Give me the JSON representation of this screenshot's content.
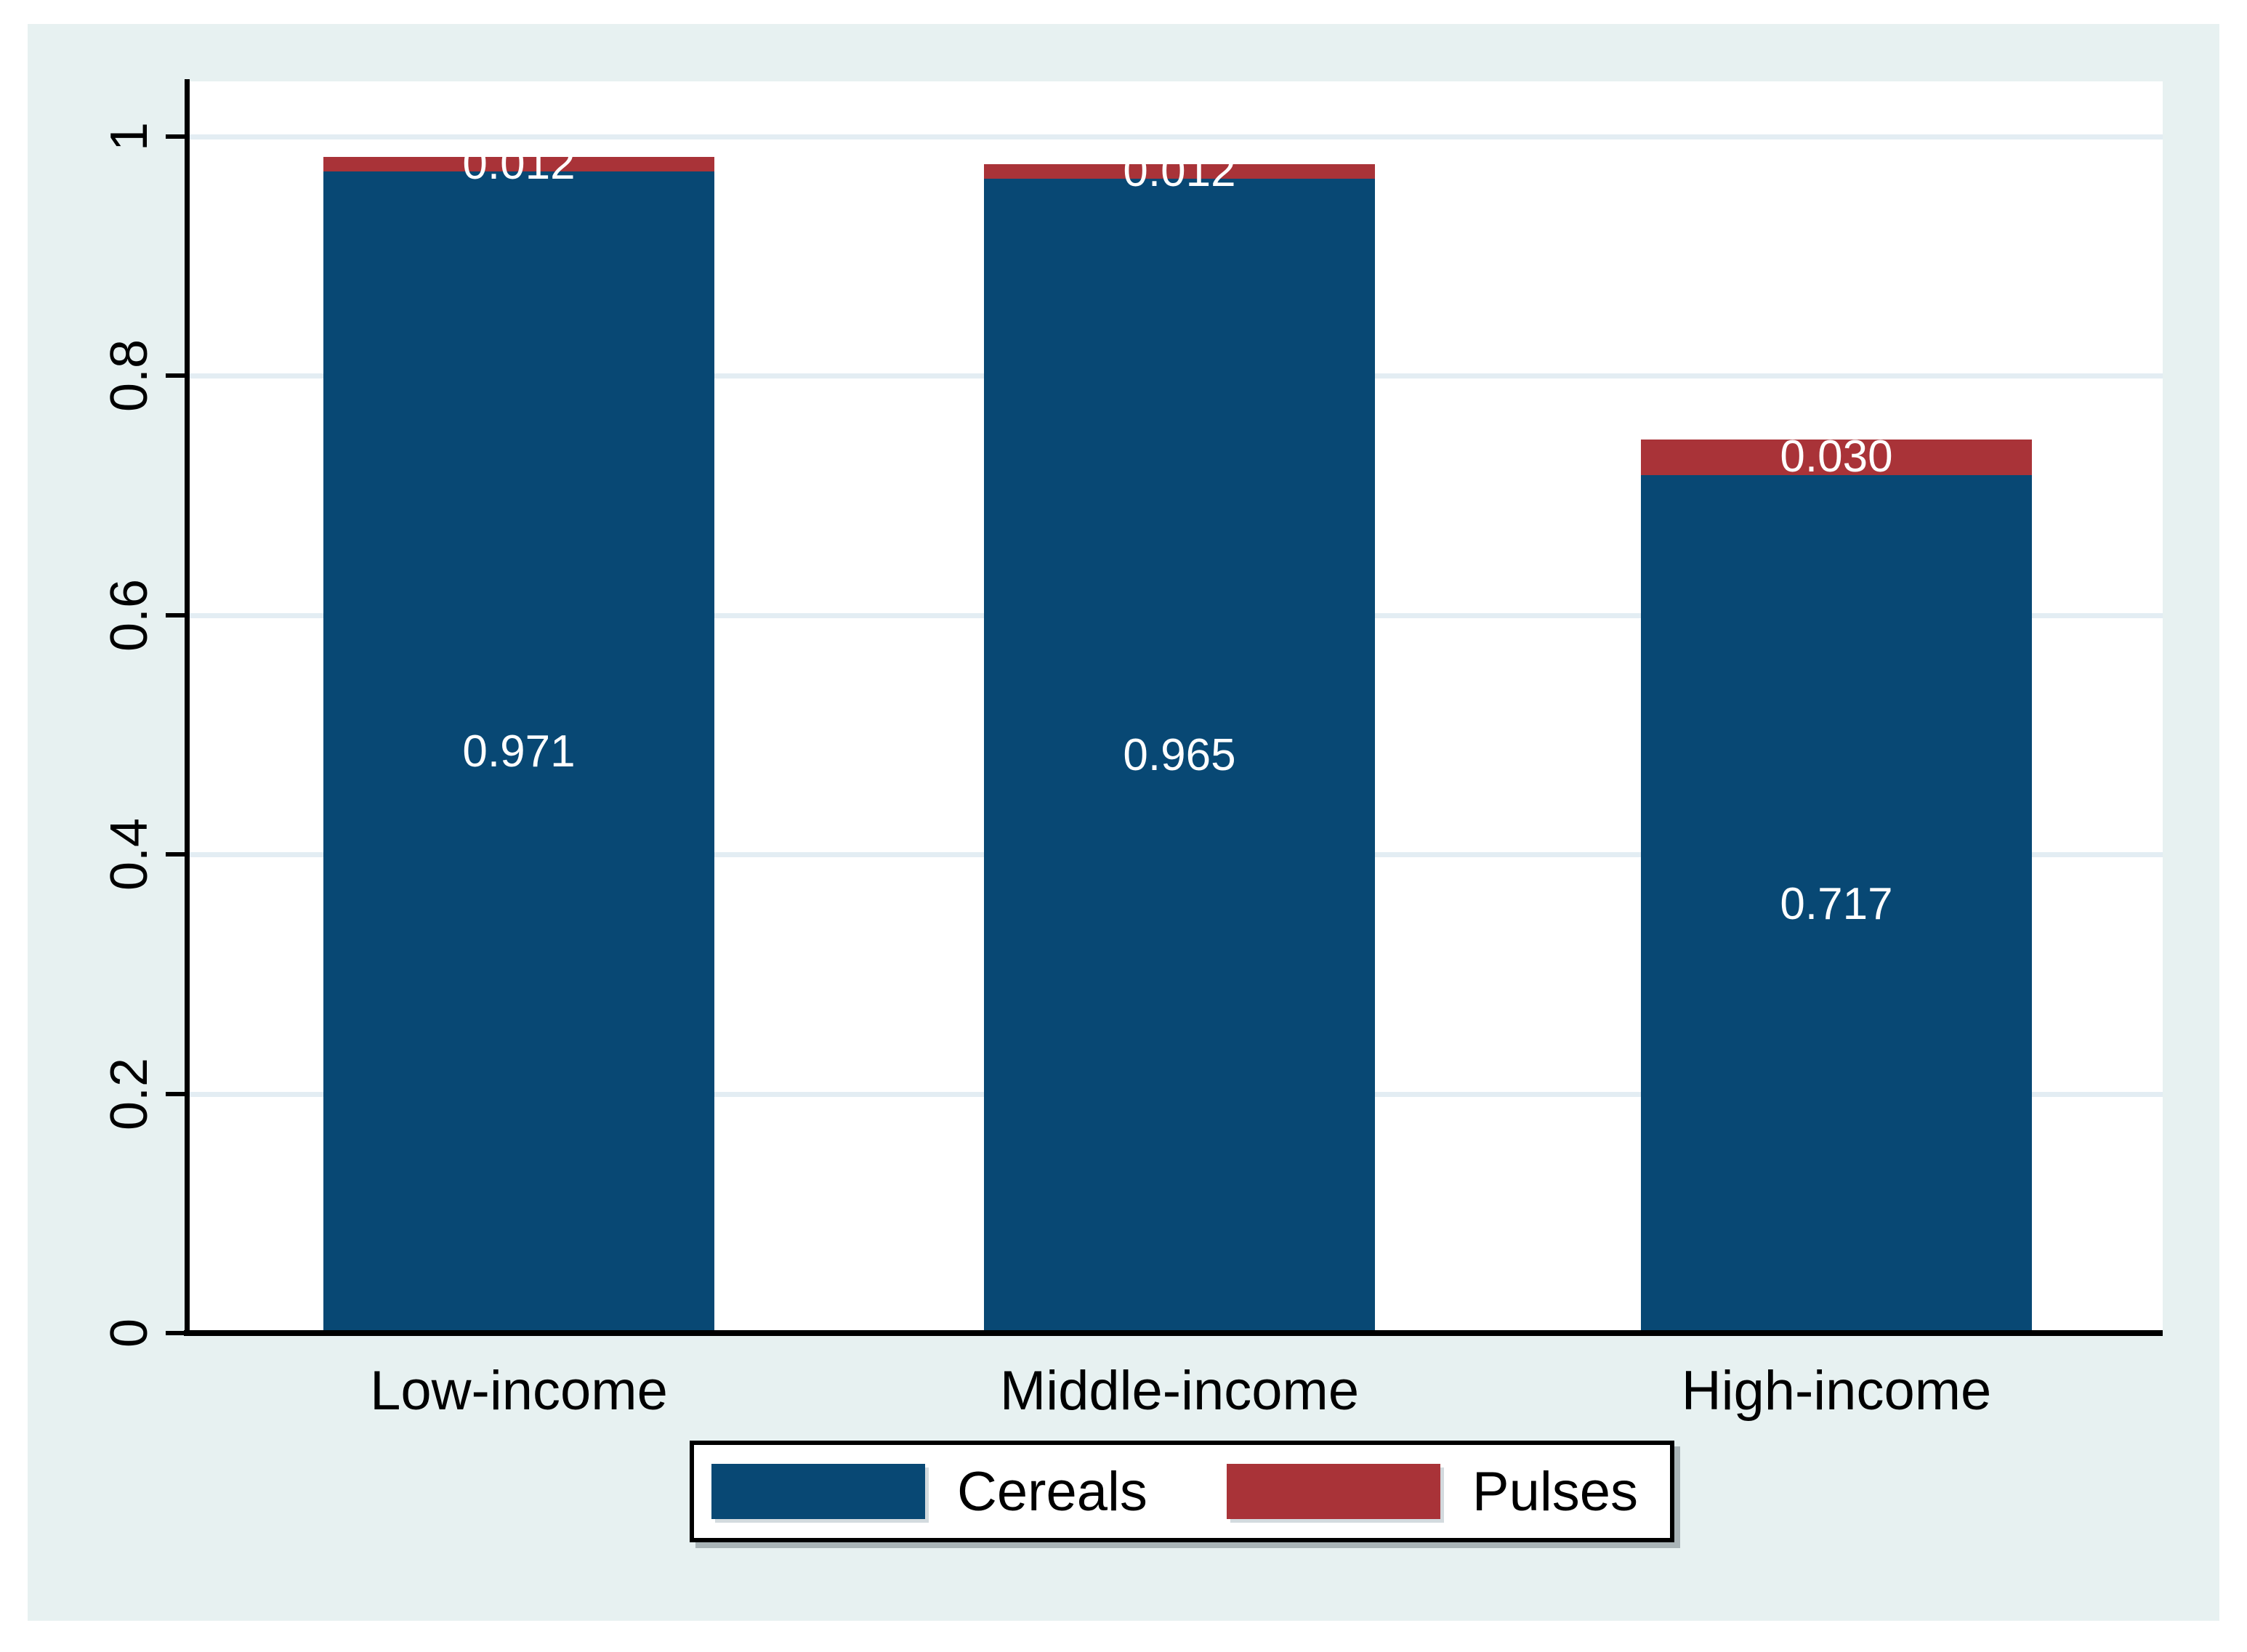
{
  "figure": {
    "background_color": "#e7f1f1",
    "plot_background_color": "#ffffff",
    "grid_color": "#e3edf3",
    "axis_color": "#000000",
    "data_label_color": "#ffffff"
  },
  "chart_data": {
    "type": "bar",
    "stacked": true,
    "title": "",
    "xlabel": "",
    "ylabel": "",
    "categories": [
      "Low-income",
      "Middle-income",
      "High-income"
    ],
    "series": [
      {
        "name": "Cereals",
        "color": "#084874",
        "values": [
          0.971,
          0.965,
          0.717
        ],
        "data_labels": [
          "0.971",
          "0.965",
          "0.717"
        ]
      },
      {
        "name": "Pulses",
        "color": "#a93338",
        "values": [
          0.012,
          0.012,
          0.03
        ],
        "data_labels": [
          "0.012",
          "0.012",
          "0.030"
        ]
      }
    ],
    "ylim": [
      0,
      1
    ],
    "yticks": [
      0,
      0.2,
      0.4,
      0.6,
      0.8,
      1
    ],
    "ytick_labels": [
      "0",
      "0.2",
      "0.4",
      "0.6",
      "0.8",
      "1"
    ],
    "grid": true,
    "legend_position": "bottom-center"
  },
  "legend": {
    "items": [
      {
        "label": "Cereals"
      },
      {
        "label": "Pulses"
      }
    ]
  }
}
